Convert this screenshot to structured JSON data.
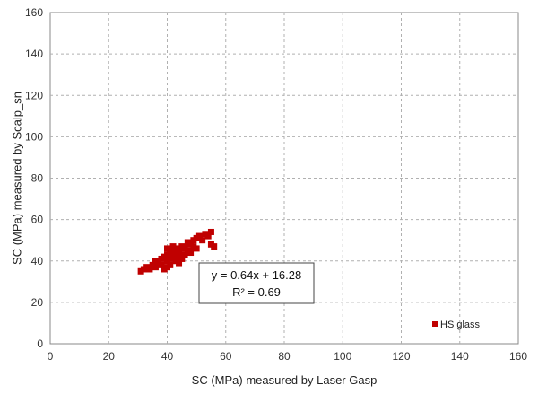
{
  "chart_data": {
    "type": "scatter",
    "xlabel": "SC (MPa) measured by Laser Gasp",
    "ylabel": "SC (MPa) measured by Scalp_sn",
    "xlim": [
      0,
      160
    ],
    "ylim": [
      0,
      160
    ],
    "xticks": [
      0,
      20,
      40,
      60,
      80,
      100,
      120,
      140,
      160
    ],
    "yticks": [
      0,
      20,
      40,
      60,
      80,
      100,
      120,
      140,
      160
    ],
    "grid": "dashed",
    "legend_position": "bottom-right",
    "marker_color": "#c00000",
    "series": [
      {
        "name": "HS glass",
        "points": [
          [
            31,
            35
          ],
          [
            32,
            36
          ],
          [
            33,
            37
          ],
          [
            34,
            36
          ],
          [
            35,
            38
          ],
          [
            36,
            40
          ],
          [
            36,
            37
          ],
          [
            37,
            39
          ],
          [
            38,
            41
          ],
          [
            38,
            38
          ],
          [
            39,
            42
          ],
          [
            40,
            43
          ],
          [
            40,
            40
          ],
          [
            40,
            37
          ],
          [
            41,
            45
          ],
          [
            41,
            38
          ],
          [
            42,
            44
          ],
          [
            42,
            41
          ],
          [
            43,
            46
          ],
          [
            43,
            40
          ],
          [
            44,
            44
          ],
          [
            44,
            42
          ],
          [
            45,
            47
          ],
          [
            45,
            41
          ],
          [
            46,
            46
          ],
          [
            46,
            43
          ],
          [
            47,
            49
          ],
          [
            47,
            45
          ],
          [
            48,
            48
          ],
          [
            49,
            50
          ],
          [
            49,
            47
          ],
          [
            50,
            51
          ],
          [
            50,
            46
          ],
          [
            51,
            52
          ],
          [
            52,
            50
          ],
          [
            53,
            53
          ],
          [
            54,
            52
          ],
          [
            55,
            54
          ],
          [
            55,
            48
          ],
          [
            56,
            47
          ],
          [
            40,
            46
          ],
          [
            44,
            39
          ],
          [
            48,
            44
          ],
          [
            39,
            36
          ],
          [
            42,
            47
          ]
        ]
      }
    ],
    "annotation": {
      "equation": "y = 0.64x + 16.28",
      "r2": "R² = 0.69"
    }
  }
}
